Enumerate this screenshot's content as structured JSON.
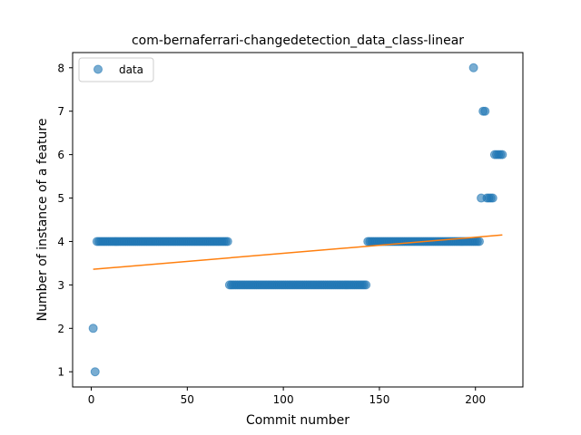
{
  "chart_data": {
    "type": "scatter",
    "title": "com-bernaferrari-changedetection_data_class-linear",
    "xlabel": "Commit number",
    "ylabel": "Number of instance of a feature",
    "xlim": [
      -9.7,
      224.7
    ],
    "ylim": [
      0.65,
      8.35
    ],
    "x_ticks": [
      0,
      50,
      100,
      150,
      200
    ],
    "y_ticks": [
      1,
      2,
      3,
      4,
      5,
      6,
      7,
      8
    ],
    "x_tick_labels": [
      "0",
      "50",
      "100",
      "150",
      "200"
    ],
    "y_tick_labels": [
      "1",
      "2",
      "3",
      "4",
      "5",
      "6",
      "7",
      "8"
    ],
    "grid": false,
    "legend": {
      "placement": "top-left",
      "entries": [
        "data"
      ]
    },
    "series": [
      {
        "name": "data",
        "style": "markers",
        "color": "#1f77b4",
        "segments": [
          {
            "x": [
              1
            ],
            "y": 2
          },
          {
            "x": [
              2
            ],
            "y": 1
          },
          {
            "x_range": [
              3,
              71
            ],
            "y": 4
          },
          {
            "x_range": [
              72,
              143
            ],
            "y": 3
          },
          {
            "x_range": [
              144,
              202
            ],
            "y": 4
          },
          {
            "x": [
              199
            ],
            "y": 8
          },
          {
            "x": [
              203
            ],
            "y": 5
          },
          {
            "x": [
              204,
              205
            ],
            "y": 7
          },
          {
            "x_range": [
              206,
              209
            ],
            "y": 5
          },
          {
            "x_range": [
              210,
              214
            ],
            "y": 6
          }
        ]
      },
      {
        "style": "line",
        "color": "#ff7f0e",
        "x": [
          1,
          214
        ],
        "y": [
          3.36,
          4.15
        ]
      }
    ]
  }
}
